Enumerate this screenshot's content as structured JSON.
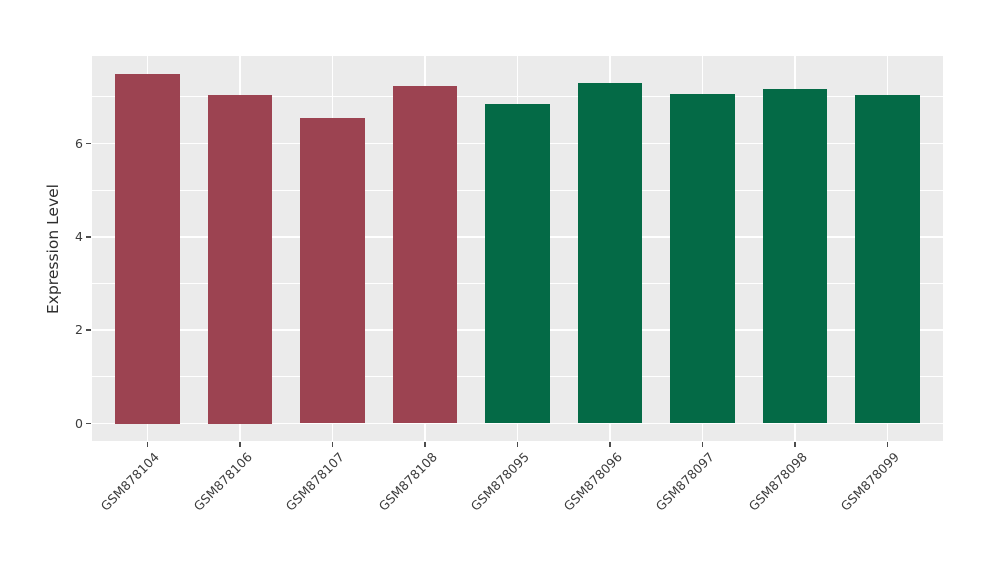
{
  "chart_data": {
    "type": "bar",
    "title": "",
    "xlabel": "",
    "ylabel": "Expression Level",
    "categories": [
      "GSM878104",
      "GSM878106",
      "GSM878107",
      "GSM878108",
      "GSM878095",
      "GSM878096",
      "GSM878097",
      "GSM878098",
      "GSM878099"
    ],
    "values": [
      7.5,
      7.05,
      6.55,
      7.23,
      6.84,
      7.3,
      7.06,
      7.17,
      7.03
    ],
    "bar_colors": [
      "#9c4351",
      "#9c4351",
      "#9c4351",
      "#9c4351",
      "#046a46",
      "#046a46",
      "#046a46",
      "#046a46",
      "#046a46"
    ],
    "color_groups": [
      {
        "color": "#9c4351",
        "samples": [
          "GSM878104",
          "GSM878106",
          "GSM878107",
          "GSM878108"
        ]
      },
      {
        "color": "#046a46",
        "samples": [
          "GSM878095",
          "GSM878096",
          "GSM878097",
          "GSM878098",
          "GSM878099"
        ]
      }
    ],
    "yticks": [
      0,
      2,
      4,
      6
    ],
    "ylim": [
      -0.375,
      7.875
    ],
    "data_range": [
      0,
      7.5
    ],
    "x_tick_rotation": 45,
    "grid": {
      "on": true,
      "major_lines": [
        0,
        2,
        4,
        6
      ],
      "minor_lines": [
        1,
        3,
        5,
        7
      ],
      "color": "#ffffff"
    },
    "legend": null,
    "panel_background": "#ebebeb",
    "text_color": "#3c3c3c",
    "tick_color": "#4d4d4d"
  }
}
